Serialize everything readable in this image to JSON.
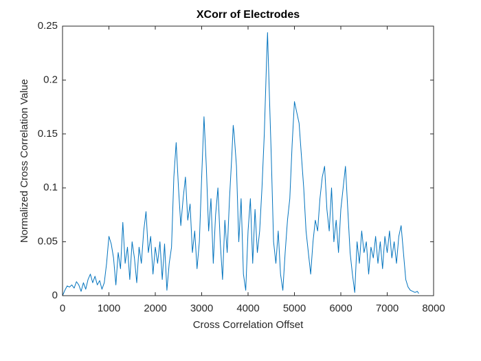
{
  "chart_data": {
    "type": "line",
    "title": "XCorr of Electrodes",
    "x_label": "Cross Correlation Offset",
    "y_label": "Normalized Cross Correlation Value",
    "color": "#0072bd",
    "x": [
      0,
      50,
      100,
      150,
      200,
      250,
      300,
      350,
      400,
      450,
      500,
      550,
      600,
      650,
      700,
      750,
      800,
      850,
      900,
      950,
      1000,
      1050,
      1100,
      1150,
      1200,
      1250,
      1300,
      1350,
      1400,
      1450,
      1500,
      1550,
      1600,
      1650,
      1700,
      1750,
      1800,
      1850,
      1900,
      1950,
      2000,
      2050,
      2100,
      2150,
      2200,
      2250,
      2300,
      2350,
      2400,
      2450,
      2500,
      2550,
      2600,
      2650,
      2700,
      2750,
      2800,
      2850,
      2900,
      2950,
      3000,
      3050,
      3100,
      3150,
      3200,
      3250,
      3300,
      3350,
      3400,
      3450,
      3500,
      3550,
      3600,
      3650,
      3680,
      3700,
      3750,
      3800,
      3850,
      3900,
      3950,
      4000,
      4050,
      4100,
      4150,
      4200,
      4250,
      4300,
      4350,
      4400,
      4420,
      4450,
      4500,
      4550,
      4600,
      4650,
      4700,
      4750,
      4800,
      4850,
      4900,
      4950,
      5000,
      5050,
      5100,
      5150,
      5200,
      5250,
      5300,
      5350,
      5400,
      5450,
      5500,
      5550,
      5600,
      5650,
      5700,
      5750,
      5800,
      5850,
      5900,
      5950,
      6000,
      6050,
      6100,
      6150,
      6200,
      6250,
      6300,
      6350,
      6400,
      6450,
      6500,
      6550,
      6600,
      6650,
      6700,
      6750,
      6800,
      6850,
      6900,
      6950,
      7000,
      7050,
      7100,
      7150,
      7200,
      7250,
      7300,
      7350,
      7400,
      7450,
      7500,
      7550,
      7600,
      7650,
      7680
    ],
    "values": [
      0,
      0.005,
      0.009,
      0.008,
      0.01,
      0.007,
      0.013,
      0.01,
      0.004,
      0.012,
      0.006,
      0.015,
      0.02,
      0.012,
      0.018,
      0.01,
      0.014,
      0.006,
      0.012,
      0.03,
      0.055,
      0.048,
      0.035,
      0.01,
      0.04,
      0.025,
      0.068,
      0.03,
      0.045,
      0.015,
      0.05,
      0.035,
      0.012,
      0.045,
      0.03,
      0.06,
      0.078,
      0.04,
      0.055,
      0.02,
      0.045,
      0.03,
      0.05,
      0.015,
      0.048,
      0.005,
      0.03,
      0.045,
      0.11,
      0.142,
      0.1,
      0.065,
      0.09,
      0.11,
      0.07,
      0.085,
      0.04,
      0.06,
      0.025,
      0.05,
      0.11,
      0.166,
      0.12,
      0.06,
      0.09,
      0.03,
      0.075,
      0.1,
      0.05,
      0.015,
      0.07,
      0.04,
      0.09,
      0.13,
      0.158,
      0.15,
      0.12,
      0.05,
      0.09,
      0.02,
      0.005,
      0.06,
      0.09,
      0.03,
      0.08,
      0.04,
      0.06,
      0.1,
      0.15,
      0.22,
      0.244,
      0.2,
      0.13,
      0.05,
      0.03,
      0.06,
      0.02,
      0.005,
      0.04,
      0.07,
      0.09,
      0.14,
      0.18,
      0.17,
      0.16,
      0.13,
      0.1,
      0.06,
      0.04,
      0.02,
      0.05,
      0.07,
      0.06,
      0.09,
      0.11,
      0.12,
      0.08,
      0.06,
      0.1,
      0.05,
      0.07,
      0.04,
      0.08,
      0.1,
      0.12,
      0.08,
      0.04,
      0.02,
      0.003,
      0.05,
      0.03,
      0.06,
      0.04,
      0.05,
      0.02,
      0.045,
      0.035,
      0.055,
      0.03,
      0.05,
      0.025,
      0.055,
      0.04,
      0.06,
      0.035,
      0.05,
      0.03,
      0.055,
      0.065,
      0.04,
      0.015,
      0.008,
      0.005,
      0.004,
      0.003,
      0.004,
      0.002
    ],
    "xlim": [
      0,
      8000
    ],
    "xticks": [
      0,
      1000,
      2000,
      3000,
      4000,
      5000,
      6000,
      7000,
      8000
    ],
    "ylim": [
      0,
      0.25
    ],
    "yticks": [
      0,
      0.05,
      0.1,
      0.15,
      0.2,
      0.25
    ]
  }
}
